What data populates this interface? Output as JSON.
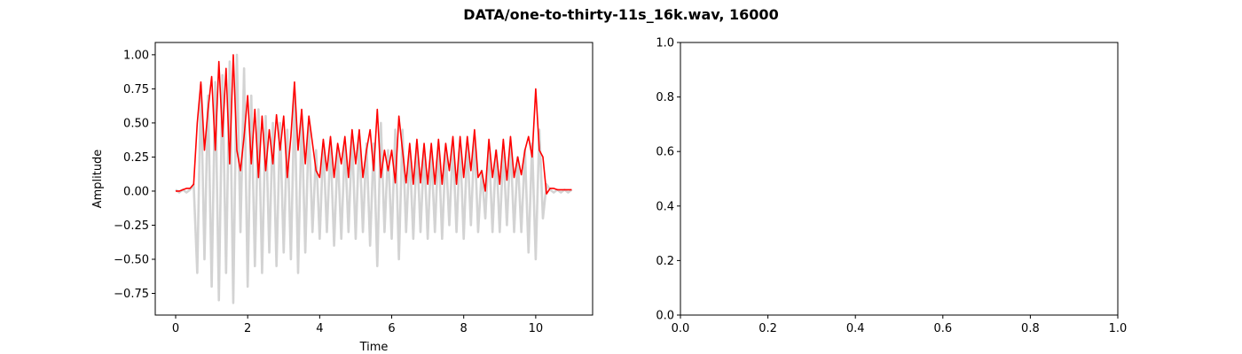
{
  "title": "DATA/one-to-thirty-11s_16k.wav, 16000",
  "chart_data": [
    {
      "type": "line",
      "xlabel": "Time",
      "ylabel": "Amplitude",
      "xlim": [
        -0.567,
        11.58
      ],
      "ylim": [
        -0.909,
        1.09
      ],
      "xticks": [
        0,
        2,
        4,
        6,
        8,
        10
      ],
      "yticks": [
        {
          "value": -0.75,
          "label": "−0.75"
        },
        {
          "value": -0.5,
          "label": "−0.50"
        },
        {
          "value": -0.25,
          "label": "−0.25"
        },
        {
          "value": 0,
          "label": "0.00"
        },
        {
          "value": 0.25,
          "label": "0.25"
        },
        {
          "value": 0.5,
          "label": "0.50"
        },
        {
          "value": 0.75,
          "label": "0.75"
        },
        {
          "value": 1,
          "label": "1.00"
        }
      ],
      "x": [
        0,
        0.1,
        0.2,
        0.3,
        0.4,
        0.5,
        0.6,
        0.7,
        0.8,
        0.9,
        1,
        1.1,
        1.2,
        1.3,
        1.4,
        1.5,
        1.6,
        1.7,
        1.8,
        1.9,
        2,
        2.1,
        2.2,
        2.3,
        2.4,
        2.5,
        2.6,
        2.7,
        2.8,
        2.9,
        3,
        3.1,
        3.2,
        3.3,
        3.4,
        3.5,
        3.6,
        3.7,
        3.8,
        3.9,
        4,
        4.1,
        4.2,
        4.3,
        4.4,
        4.5,
        4.6,
        4.7,
        4.8,
        4.9,
        5,
        5.1,
        5.2,
        5.3,
        5.4,
        5.5,
        5.6,
        5.7,
        5.8,
        5.9,
        6,
        6.1,
        6.2,
        6.3,
        6.4,
        6.5,
        6.6,
        6.7,
        6.8,
        6.9,
        7,
        7.1,
        7.2,
        7.3,
        7.4,
        7.5,
        7.6,
        7.7,
        7.8,
        7.9,
        8,
        8.1,
        8.2,
        8.3,
        8.4,
        8.5,
        8.6,
        8.7,
        8.8,
        8.9,
        9,
        9.1,
        9.2,
        9.3,
        9.4,
        9.5,
        9.6,
        9.7,
        9.8,
        9.9,
        10,
        10.1,
        10.2,
        10.3,
        10.4,
        10.5,
        10.6,
        10.7,
        10.8,
        10.9,
        11
      ],
      "series": [
        {
          "color": "#d3d3d3",
          "values": [
            0.01,
            -0.01,
            0.01,
            -0.01,
            0.01,
            0.05,
            -0.6,
            0.78,
            -0.5,
            0.7,
            -0.7,
            0.8,
            -0.8,
            0.85,
            -0.6,
            0.95,
            -0.82,
            1.0,
            -0.3,
            0.9,
            -0.7,
            0.7,
            -0.55,
            0.6,
            -0.6,
            0.55,
            -0.45,
            0.5,
            -0.55,
            0.5,
            -0.45,
            0.45,
            -0.5,
            0.7,
            -0.6,
            0.55,
            -0.45,
            0.5,
            -0.3,
            0.3,
            -0.35,
            0.35,
            -0.3,
            0.35,
            -0.4,
            0.3,
            -0.35,
            0.35,
            -0.3,
            0.4,
            -0.35,
            0.4,
            -0.3,
            0.35,
            -0.4,
            0.35,
            -0.55,
            0.5,
            -0.3,
            0.3,
            -0.35,
            0.45,
            -0.5,
            0.45,
            -0.3,
            0.3,
            -0.35,
            0.35,
            -0.3,
            0.3,
            -0.35,
            0.3,
            -0.3,
            0.35,
            -0.35,
            0.3,
            -0.25,
            0.35,
            -0.3,
            0.35,
            -0.35,
            0.35,
            -0.25,
            0.4,
            -0.3,
            0.15,
            -0.2,
            0.35,
            -0.3,
            0.3,
            -0.3,
            0.3,
            -0.25,
            0.35,
            -0.3,
            0.25,
            -0.3,
            0.3,
            -0.45,
            0.35,
            -0.5,
            0.45,
            -0.2,
            0.05,
            0.01,
            -0.01,
            0.01,
            -0.01,
            0.01,
            -0.01,
            0.01
          ]
        },
        {
          "color": "#ff0000",
          "values": [
            0,
            0,
            0.01,
            0.02,
            0.02,
            0.05,
            0.5,
            0.8,
            0.3,
            0.6,
            0.84,
            0.3,
            0.95,
            0.4,
            0.9,
            0.2,
            1.0,
            0.3,
            0.15,
            0.4,
            0.7,
            0.2,
            0.6,
            0.1,
            0.55,
            0.15,
            0.45,
            0.2,
            0.56,
            0.3,
            0.55,
            0.1,
            0.4,
            0.8,
            0.3,
            0.6,
            0.2,
            0.55,
            0.35,
            0.15,
            0.1,
            0.38,
            0.15,
            0.4,
            0.1,
            0.35,
            0.2,
            0.4,
            0.1,
            0.45,
            0.2,
            0.45,
            0.1,
            0.3,
            0.45,
            0.15,
            0.6,
            0.1,
            0.3,
            0.15,
            0.3,
            0.06,
            0.55,
            0.3,
            0.06,
            0.35,
            0.05,
            0.38,
            0.06,
            0.35,
            0.05,
            0.35,
            0.05,
            0.38,
            0.05,
            0.35,
            0.15,
            0.4,
            0.05,
            0.4,
            0.1,
            0.4,
            0.15,
            0.45,
            0.1,
            0.15,
            0.0,
            0.38,
            0.1,
            0.3,
            0.05,
            0.38,
            0.08,
            0.4,
            0.1,
            0.25,
            0.12,
            0.3,
            0.4,
            0.25,
            0.75,
            0.3,
            0.25,
            -0.02,
            0.02,
            0.02,
            0.01,
            0.01,
            0.01,
            0.01,
            0.01
          ]
        }
      ]
    },
    {
      "type": "empty",
      "xlim": [
        0,
        1
      ],
      "ylim": [
        0,
        1
      ],
      "xticks": [
        {
          "value": 0,
          "label": "0.0"
        },
        {
          "value": 0.2,
          "label": "0.2"
        },
        {
          "value": 0.4,
          "label": "0.4"
        },
        {
          "value": 0.6,
          "label": "0.6"
        },
        {
          "value": 0.8,
          "label": "0.8"
        },
        {
          "value": 1,
          "label": "1.0"
        }
      ],
      "yticks": [
        {
          "value": 0,
          "label": "0.0"
        },
        {
          "value": 0.2,
          "label": "0.2"
        },
        {
          "value": 0.4,
          "label": "0.4"
        },
        {
          "value": 0.6,
          "label": "0.6"
        },
        {
          "value": 0.8,
          "label": "0.8"
        },
        {
          "value": 1,
          "label": "1.0"
        }
      ]
    }
  ]
}
